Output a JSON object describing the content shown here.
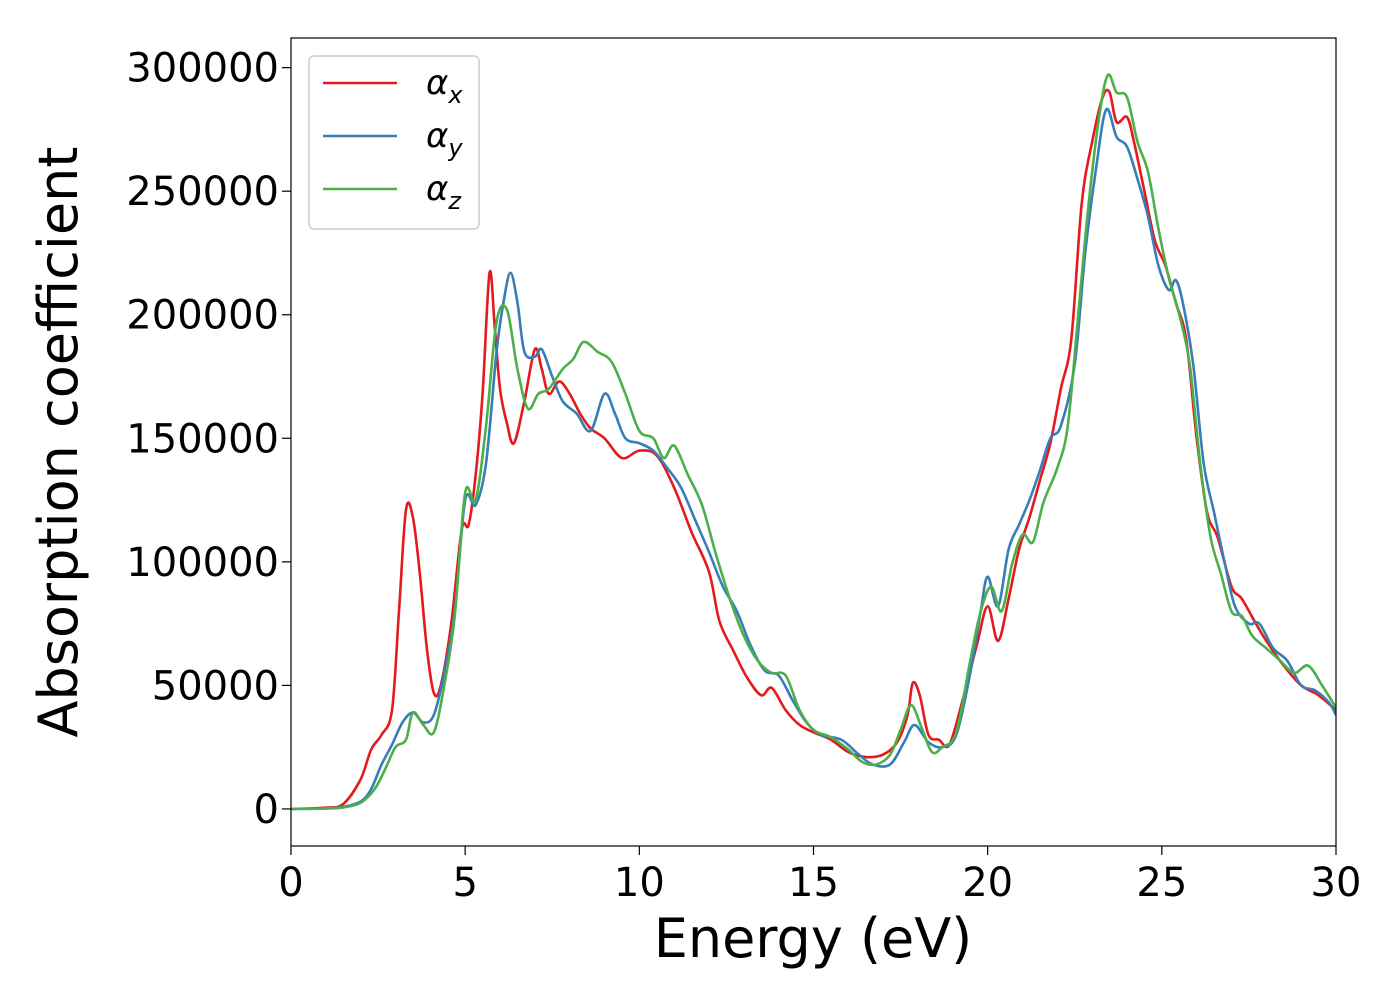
{
  "chart_data": {
    "type": "line",
    "title": "",
    "xlabel": "Energy (eV)",
    "ylabel": "Absorption coefficient",
    "xlim": [
      0,
      30
    ],
    "ylim": [
      -15000,
      312000
    ],
    "xticks": [
      0,
      5,
      10,
      15,
      20,
      25,
      30
    ],
    "yticks": [
      0,
      50000,
      100000,
      150000,
      200000,
      250000,
      300000
    ],
    "grid": false,
    "legend_position": "top-left",
    "series": [
      {
        "name": "α_x",
        "legend_symbol": "α",
        "legend_sub": "x",
        "color": "#e41a1c",
        "points": [
          [
            0,
            0
          ],
          [
            1,
            500
          ],
          [
            1.5,
            2000
          ],
          [
            2,
            12000
          ],
          [
            2.3,
            24000
          ],
          [
            2.6,
            30000
          ],
          [
            2.9,
            40000
          ],
          [
            3.1,
            80000
          ],
          [
            3.3,
            121000
          ],
          [
            3.5,
            118000
          ],
          [
            3.7,
            95000
          ],
          [
            3.9,
            65000
          ],
          [
            4.1,
            47000
          ],
          [
            4.3,
            50000
          ],
          [
            4.6,
            75000
          ],
          [
            4.9,
            113000
          ],
          [
            5.1,
            115000
          ],
          [
            5.3,
            135000
          ],
          [
            5.5,
            168000
          ],
          [
            5.7,
            217000
          ],
          [
            5.85,
            195000
          ],
          [
            6.0,
            170000
          ],
          [
            6.2,
            156000
          ],
          [
            6.4,
            148000
          ],
          [
            6.7,
            165000
          ],
          [
            7.0,
            186000
          ],
          [
            7.2,
            178000
          ],
          [
            7.4,
            168000
          ],
          [
            7.7,
            173000
          ],
          [
            8.0,
            168000
          ],
          [
            8.3,
            160000
          ],
          [
            8.6,
            154000
          ],
          [
            9,
            150000
          ],
          [
            9.5,
            142000
          ],
          [
            10,
            145000
          ],
          [
            10.5,
            143000
          ],
          [
            11,
            130000
          ],
          [
            11.5,
            112000
          ],
          [
            12,
            96000
          ],
          [
            12.3,
            76000
          ],
          [
            12.7,
            64000
          ],
          [
            13.1,
            53000
          ],
          [
            13.5,
            46000
          ],
          [
            13.8,
            49000
          ],
          [
            14.2,
            40000
          ],
          [
            14.6,
            34000
          ],
          [
            15,
            31000
          ],
          [
            15.5,
            28000
          ],
          [
            16,
            23000
          ],
          [
            16.5,
            21000
          ],
          [
            17.0,
            22000
          ],
          [
            17.4,
            27000
          ],
          [
            17.7,
            38000
          ],
          [
            17.85,
            51000
          ],
          [
            18.05,
            46000
          ],
          [
            18.3,
            30000
          ],
          [
            18.6,
            28000
          ],
          [
            18.9,
            26000
          ],
          [
            19.3,
            45000
          ],
          [
            19.7,
            67000
          ],
          [
            20.0,
            82000
          ],
          [
            20.3,
            68000
          ],
          [
            20.6,
            85000
          ],
          [
            20.9,
            105000
          ],
          [
            21.2,
            118000
          ],
          [
            21.5,
            133000
          ],
          [
            21.8,
            148000
          ],
          [
            22.1,
            170000
          ],
          [
            22.4,
            190000
          ],
          [
            22.7,
            245000
          ],
          [
            23.0,
            270000
          ],
          [
            23.3,
            288000
          ],
          [
            23.5,
            290000
          ],
          [
            23.7,
            278000
          ],
          [
            24.0,
            280000
          ],
          [
            24.2,
            270000
          ],
          [
            24.5,
            250000
          ],
          [
            24.8,
            230000
          ],
          [
            25.1,
            220000
          ],
          [
            25.4,
            205000
          ],
          [
            25.7,
            190000
          ],
          [
            26.0,
            150000
          ],
          [
            26.3,
            120000
          ],
          [
            26.6,
            110000
          ],
          [
            27.0,
            90000
          ],
          [
            27.3,
            85000
          ],
          [
            27.7,
            75000
          ],
          [
            28.0,
            68000
          ],
          [
            28.5,
            58000
          ],
          [
            29.0,
            50000
          ],
          [
            29.5,
            46000
          ],
          [
            30,
            40000
          ]
        ]
      },
      {
        "name": "α_y",
        "legend_symbol": "α",
        "legend_sub": "y",
        "color": "#377eb8",
        "points": [
          [
            0,
            0
          ],
          [
            1,
            200
          ],
          [
            1.5,
            800
          ],
          [
            2,
            3000
          ],
          [
            2.3,
            8000
          ],
          [
            2.6,
            18000
          ],
          [
            2.9,
            26000
          ],
          [
            3.2,
            35000
          ],
          [
            3.5,
            39000
          ],
          [
            3.8,
            35000
          ],
          [
            4.1,
            38000
          ],
          [
            4.4,
            55000
          ],
          [
            4.7,
            80000
          ],
          [
            5.0,
            125000
          ],
          [
            5.3,
            123000
          ],
          [
            5.6,
            140000
          ],
          [
            5.9,
            185000
          ],
          [
            6.1,
            205000
          ],
          [
            6.3,
            217000
          ],
          [
            6.5,
            205000
          ],
          [
            6.7,
            185000
          ],
          [
            7.0,
            183000
          ],
          [
            7.2,
            186000
          ],
          [
            7.5,
            175000
          ],
          [
            7.8,
            165000
          ],
          [
            8.2,
            160000
          ],
          [
            8.6,
            153000
          ],
          [
            9.0,
            168000
          ],
          [
            9.3,
            160000
          ],
          [
            9.6,
            150000
          ],
          [
            10.0,
            148000
          ],
          [
            10.4,
            145000
          ],
          [
            10.8,
            138000
          ],
          [
            11.2,
            130000
          ],
          [
            11.6,
            117000
          ],
          [
            12.0,
            104000
          ],
          [
            12.4,
            90000
          ],
          [
            12.8,
            80000
          ],
          [
            13.2,
            66000
          ],
          [
            13.6,
            56000
          ],
          [
            14.0,
            54000
          ],
          [
            14.4,
            44000
          ],
          [
            14.8,
            35000
          ],
          [
            15.2,
            30000
          ],
          [
            15.8,
            28000
          ],
          [
            16.3,
            22000
          ],
          [
            16.7,
            18000
          ],
          [
            17.2,
            18000
          ],
          [
            17.6,
            27000
          ],
          [
            17.9,
            34000
          ],
          [
            18.3,
            27000
          ],
          [
            18.7,
            25000
          ],
          [
            19.1,
            30000
          ],
          [
            19.5,
            55000
          ],
          [
            19.8,
            80000
          ],
          [
            20.0,
            94000
          ],
          [
            20.3,
            82000
          ],
          [
            20.6,
            105000
          ],
          [
            20.9,
            115000
          ],
          [
            21.2,
            125000
          ],
          [
            21.5,
            137000
          ],
          [
            21.8,
            150000
          ],
          [
            22.1,
            155000
          ],
          [
            22.5,
            180000
          ],
          [
            22.8,
            225000
          ],
          [
            23.1,
            258000
          ],
          [
            23.4,
            283000
          ],
          [
            23.7,
            272000
          ],
          [
            24.0,
            268000
          ],
          [
            24.3,
            255000
          ],
          [
            24.6,
            240000
          ],
          [
            24.9,
            220000
          ],
          [
            25.2,
            210000
          ],
          [
            25.4,
            214000
          ],
          [
            25.6,
            205000
          ],
          [
            25.9,
            180000
          ],
          [
            26.2,
            140000
          ],
          [
            26.5,
            120000
          ],
          [
            26.8,
            100000
          ],
          [
            27.1,
            82000
          ],
          [
            27.5,
            75000
          ],
          [
            27.8,
            75000
          ],
          [
            28.2,
            65000
          ],
          [
            28.6,
            60000
          ],
          [
            29.0,
            50000
          ],
          [
            29.4,
            48000
          ],
          [
            29.8,
            43000
          ],
          [
            30,
            38000
          ]
        ]
      },
      {
        "name": "α_z",
        "legend_symbol": "α",
        "legend_sub": "z",
        "color": "#4daf4a",
        "points": [
          [
            0,
            0
          ],
          [
            1,
            200
          ],
          [
            1.5,
            600
          ],
          [
            2,
            2500
          ],
          [
            2.4,
            8000
          ],
          [
            2.7,
            16000
          ],
          [
            3.0,
            25000
          ],
          [
            3.3,
            28000
          ],
          [
            3.5,
            39000
          ],
          [
            3.8,
            34000
          ],
          [
            4.1,
            31000
          ],
          [
            4.4,
            50000
          ],
          [
            4.7,
            78000
          ],
          [
            5.0,
            128000
          ],
          [
            5.3,
            125000
          ],
          [
            5.6,
            155000
          ],
          [
            5.9,
            197000
          ],
          [
            6.2,
            202000
          ],
          [
            6.5,
            178000
          ],
          [
            6.8,
            162000
          ],
          [
            7.1,
            168000
          ],
          [
            7.4,
            170000
          ],
          [
            7.8,
            178000
          ],
          [
            8.1,
            182000
          ],
          [
            8.4,
            189000
          ],
          [
            8.8,
            185000
          ],
          [
            9.2,
            181000
          ],
          [
            9.6,
            168000
          ],
          [
            10.0,
            153000
          ],
          [
            10.4,
            150000
          ],
          [
            10.7,
            142000
          ],
          [
            11.0,
            147000
          ],
          [
            11.4,
            135000
          ],
          [
            11.8,
            123000
          ],
          [
            12.2,
            103000
          ],
          [
            12.6,
            85000
          ],
          [
            13.0,
            70000
          ],
          [
            13.4,
            60000
          ],
          [
            13.8,
            55000
          ],
          [
            14.2,
            54000
          ],
          [
            14.6,
            40000
          ],
          [
            15.0,
            32000
          ],
          [
            15.5,
            29000
          ],
          [
            16.0,
            24000
          ],
          [
            16.4,
            19000
          ],
          [
            16.8,
            18000
          ],
          [
            17.2,
            22000
          ],
          [
            17.5,
            32000
          ],
          [
            17.8,
            42000
          ],
          [
            18.1,
            33000
          ],
          [
            18.4,
            23000
          ],
          [
            18.7,
            25000
          ],
          [
            19.1,
            31000
          ],
          [
            19.5,
            60000
          ],
          [
            19.8,
            80000
          ],
          [
            20.1,
            90000
          ],
          [
            20.4,
            80000
          ],
          [
            20.7,
            99000
          ],
          [
            21.0,
            111000
          ],
          [
            21.3,
            108000
          ],
          [
            21.6,
            124000
          ],
          [
            22.0,
            138000
          ],
          [
            22.3,
            155000
          ],
          [
            22.6,
            200000
          ],
          [
            22.9,
            245000
          ],
          [
            23.2,
            280000
          ],
          [
            23.45,
            297000
          ],
          [
            23.7,
            290000
          ],
          [
            24.0,
            288000
          ],
          [
            24.3,
            270000
          ],
          [
            24.6,
            258000
          ],
          [
            24.9,
            235000
          ],
          [
            25.2,
            215000
          ],
          [
            25.5,
            200000
          ],
          [
            25.8,
            180000
          ],
          [
            26.1,
            140000
          ],
          [
            26.4,
            110000
          ],
          [
            26.7,
            95000
          ],
          [
            27.0,
            80000
          ],
          [
            27.3,
            78000
          ],
          [
            27.6,
            70000
          ],
          [
            28.0,
            65000
          ],
          [
            28.4,
            60000
          ],
          [
            28.8,
            55000
          ],
          [
            29.2,
            58000
          ],
          [
            29.6,
            50000
          ],
          [
            30,
            41000
          ]
        ]
      }
    ]
  }
}
